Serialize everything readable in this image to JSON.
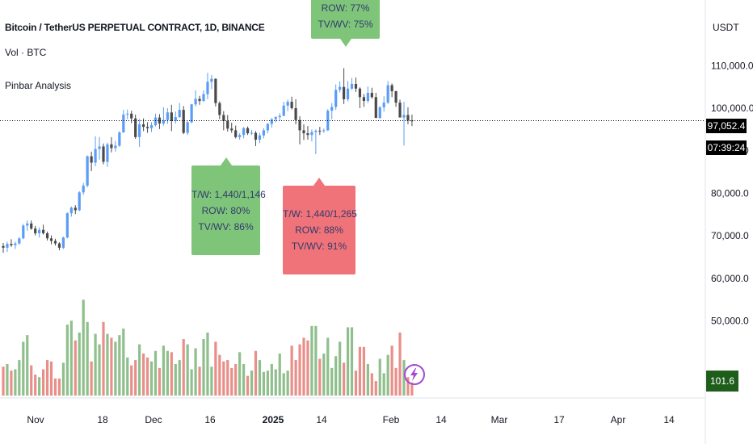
{
  "header": {
    "title": "Bitcoin / TetherUS PERPETUAL CONTRACT, 1D, BINANCE",
    "volume_indicator": "Vol · BTC",
    "pinbar_indicator": "Pinbar Analysis",
    "currency": "USDT"
  },
  "price_axis": {
    "labels": [
      "110,000.0",
      "100,000.0",
      "90,000.0",
      "80,000.0",
      "70,000.0",
      "60,000.0",
      "50,000.0"
    ],
    "last_price": "97,052.4",
    "countdown": "07:39:24",
    "last_volume": "101.6 K"
  },
  "time_axis": {
    "labels": [
      "Nov",
      "18",
      "Dec",
      "16",
      "2025",
      "14",
      "Feb",
      "14",
      "Mar",
      "17",
      "Apr",
      "14"
    ]
  },
  "callouts": [
    {
      "lines": [
        "ROW: 77%",
        "TV/WV: 75%"
      ],
      "color": "#7ec57a"
    },
    {
      "lines": [
        "T/W: 1,440/1,146",
        "ROW: 80%",
        "TV/WV: 86%"
      ],
      "color": "#7ec57a"
    },
    {
      "lines": [
        "T/W: 1,440/1,265",
        "ROW: 88%",
        "TV/WV: 91%"
      ],
      "color": "#f0737a"
    }
  ],
  "colors": {
    "up": "#5b9cf6",
    "down": "#4a4a4a",
    "vol_up": "#8fbf8c",
    "vol_down": "#e88f8a",
    "grid_line": "#000000"
  },
  "chart_data": {
    "type": "candlestick",
    "title": "Bitcoin / TetherUS PERPETUAL CONTRACT, 1D, BINANCE",
    "ylabel": "USDT",
    "ylim": [
      47000,
      116000
    ],
    "last_price": 97052.4,
    "dates_start": "2024-10-28",
    "ohlc": [
      [
        67600,
        68300,
        66000,
        67200
      ],
      [
        67200,
        68600,
        66200,
        68100
      ],
      [
        68100,
        69200,
        67400,
        67800
      ],
      [
        67800,
        68600,
        66900,
        68200
      ],
      [
        68200,
        69700,
        67900,
        69400
      ],
      [
        69400,
        72800,
        69200,
        72400
      ],
      [
        72400,
        73600,
        71200,
        72900
      ],
      [
        72900,
        73600,
        71400,
        71700
      ],
      [
        71700,
        72300,
        70100,
        70600
      ],
      [
        70600,
        72000,
        69600,
        71400
      ],
      [
        71400,
        72600,
        70300,
        70600
      ],
      [
        70600,
        71000,
        68900,
        69400
      ],
      [
        69400,
        70100,
        68000,
        68800
      ],
      [
        68800,
        69300,
        67700,
        68200
      ],
      [
        68200,
        68500,
        66600,
        67200
      ],
      [
        67200,
        69800,
        66900,
        69600
      ],
      [
        69600,
        75500,
        69400,
        75300
      ],
      [
        75300,
        76900,
        74500,
        76600
      ],
      [
        76600,
        77200,
        75100,
        76000
      ],
      [
        76000,
        80500,
        75800,
        80200
      ],
      [
        80200,
        82400,
        79600,
        81800
      ],
      [
        81800,
        88900,
        81400,
        88700
      ],
      [
        88700,
        89800,
        85200,
        87200
      ],
      [
        87200,
        93400,
        86400,
        90400
      ],
      [
        90400,
        93200,
        87900,
        91000
      ],
      [
        91000,
        91700,
        86800,
        87400
      ],
      [
        87400,
        91900,
        86200,
        91500
      ],
      [
        91500,
        93200,
        89600,
        90600
      ],
      [
        90600,
        92300,
        89800,
        91200
      ],
      [
        91200,
        94600,
        90900,
        94300
      ],
      [
        94300,
        99600,
        94200,
        98500
      ],
      [
        98500,
        99700,
        97400,
        98700
      ],
      [
        98700,
        99400,
        96500,
        97600
      ],
      [
        97600,
        98500,
        92800,
        93200
      ],
      [
        93200,
        97500,
        90900,
        96200
      ],
      [
        96200,
        97600,
        94600,
        95600
      ],
      [
        95600,
        96700,
        94200,
        95300
      ],
      [
        95300,
        96700,
        94400,
        96000
      ],
      [
        96000,
        98700,
        95700,
        97800
      ],
      [
        97800,
        98600,
        95100,
        96400
      ],
      [
        96400,
        100200,
        95900,
        97200
      ],
      [
        97200,
        100000,
        96300,
        99000
      ],
      [
        99000,
        100800,
        94600,
        97000
      ],
      [
        97000,
        99200,
        96400,
        97900
      ],
      [
        97900,
        101200,
        97700,
        99600
      ],
      [
        99600,
        100500,
        93900,
        94200
      ],
      [
        94200,
        97000,
        93700,
        96700
      ],
      [
        96700,
        101000,
        96400,
        100900
      ],
      [
        100900,
        104200,
        100400,
        102200
      ],
      [
        102200,
        102900,
        100800,
        101700
      ],
      [
        101700,
        104200,
        101500,
        103300
      ],
      [
        103300,
        108300,
        102100,
        106200
      ],
      [
        106200,
        107800,
        104500,
        106900
      ],
      [
        106900,
        107000,
        100400,
        101200
      ],
      [
        101200,
        101600,
        97400,
        98400
      ],
      [
        98400,
        99300,
        94800,
        97000
      ],
      [
        97000,
        98400,
        94500,
        95200
      ],
      [
        95200,
        96600,
        94200,
        94800
      ],
      [
        94800,
        95900,
        92900,
        93200
      ],
      [
        93200,
        94100,
        92600,
        93700
      ],
      [
        93700,
        95600,
        92900,
        95300
      ],
      [
        95300,
        95700,
        93700,
        94100
      ],
      [
        94100,
        94900,
        93700,
        94200
      ],
      [
        94200,
        94600,
        91100,
        92600
      ],
      [
        92600,
        94200,
        91800,
        93600
      ],
      [
        93600,
        95300,
        92900,
        94800
      ],
      [
        94800,
        96500,
        94100,
        96300
      ],
      [
        96300,
        97700,
        95400,
        97400
      ],
      [
        97400,
        98100,
        96700,
        97900
      ],
      [
        97900,
        98800,
        97100,
        98200
      ],
      [
        98200,
        101500,
        98100,
        100600
      ],
      [
        100600,
        102000,
        99300,
        101500
      ],
      [
        101500,
        102700,
        99700,
        100000
      ],
      [
        100000,
        102100,
        96200,
        97200
      ],
      [
        97200,
        98100,
        91500,
        94800
      ],
      [
        94800,
        96200,
        92500,
        94100
      ],
      [
        94100,
        95800,
        92600,
        93700
      ],
      [
        93700,
        95000,
        92200,
        94400
      ],
      [
        94400,
        95000,
        89200,
        94700
      ],
      [
        94700,
        95600,
        93700,
        94600
      ],
      [
        94600,
        95200,
        94200,
        94800
      ],
      [
        94800,
        99800,
        94600,
        99400
      ],
      [
        99400,
        101200,
        97400,
        100300
      ],
      [
        100300,
        105600,
        99600,
        104300
      ],
      [
        104300,
        106300,
        103700,
        105000
      ],
      [
        105000,
        109400,
        101000,
        102100
      ],
      [
        102100,
        106400,
        101600,
        104600
      ],
      [
        104600,
        107100,
        104300,
        105700
      ],
      [
        105700,
        107200,
        103800,
        104600
      ],
      [
        104600,
        104900,
        100000,
        102600
      ],
      [
        102600,
        103300,
        100300,
        101700
      ],
      [
        101700,
        105100,
        101200,
        103600
      ],
      [
        103600,
        104800,
        102200,
        102600
      ],
      [
        102600,
        103600,
        97800,
        97700
      ],
      [
        97700,
        100500,
        97500,
        100200
      ],
      [
        100200,
        102800,
        99200,
        101300
      ],
      [
        101300,
        106400,
        101000,
        105400
      ],
      [
        105400,
        105800,
        102600,
        104000
      ],
      [
        104000,
        104100,
        100300,
        101300
      ],
      [
        101300,
        102000,
        98000,
        97800
      ],
      [
        97800,
        101500,
        91200,
        98400
      ],
      [
        98400,
        100200,
        96200,
        97100
      ],
      [
        97100,
        98500,
        95800,
        97052
      ]
    ],
    "volume": [
      22,
      24,
      19,
      20,
      27,
      41,
      46,
      23,
      16,
      14,
      20,
      27,
      26,
      13,
      13,
      25,
      54,
      57,
      42,
      48,
      73,
      56,
      26,
      47,
      39,
      56,
      47,
      44,
      41,
      46,
      51,
      29,
      23,
      27,
      39,
      32,
      29,
      26,
      34,
      21,
      38,
      34,
      33,
      24,
      27,
      43,
      39,
      20,
      36,
      22,
      43,
      48,
      22,
      41,
      31,
      26,
      27,
      21,
      24,
      33,
      24,
      15,
      19,
      34,
      27,
      18,
      19,
      24,
      20,
      32,
      17,
      19,
      38,
      27,
      39,
      44,
      42,
      53,
      53,
      28,
      32,
      44,
      21,
      30,
      41,
      25,
      52,
      52,
      19,
      37,
      37,
      24,
      17,
      11,
      28,
      17,
      31,
      38,
      21,
      48,
      27,
      14,
      10
    ]
  }
}
